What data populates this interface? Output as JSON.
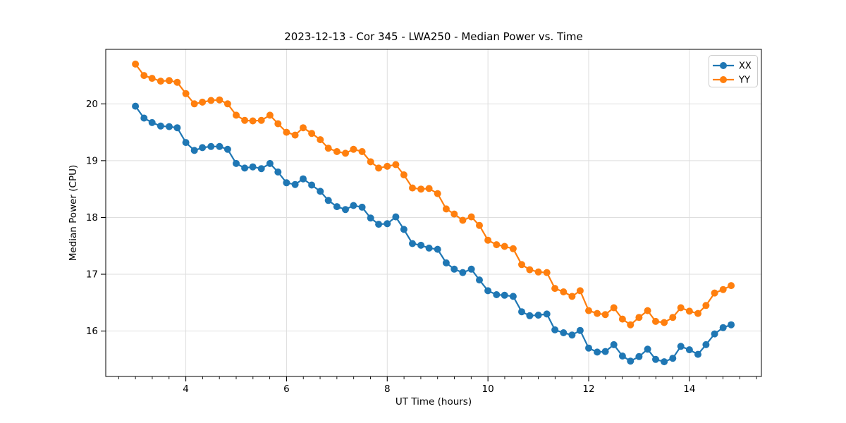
{
  "figure": {
    "title": "2023-12-13 - Cor 345 - LWA250 - Median Power vs. Time",
    "xlabel": "UT Time (hours)",
    "ylabel": "Median Power (CPU)"
  },
  "chart_data": {
    "type": "line",
    "title": "2023-12-13 - Cor 345 - LWA250 - Median Power vs. Time",
    "xlabel": "UT Time (hours)",
    "ylabel": "Median Power (CPU)",
    "x": [
      3.0,
      3.17,
      3.33,
      3.5,
      3.67,
      3.83,
      4.0,
      4.17,
      4.33,
      4.5,
      4.67,
      4.83,
      5.0,
      5.17,
      5.33,
      5.5,
      5.67,
      5.83,
      6.0,
      6.17,
      6.33,
      6.5,
      6.67,
      6.83,
      7.0,
      7.17,
      7.33,
      7.5,
      7.67,
      7.83,
      8.0,
      8.17,
      8.33,
      8.5,
      8.67,
      8.83,
      9.0,
      9.17,
      9.33,
      9.5,
      9.67,
      9.83,
      10.0,
      10.17,
      10.33,
      10.5,
      10.67,
      10.83,
      11.0,
      11.17,
      11.33,
      11.5,
      11.67,
      11.83,
      12.0,
      12.17,
      12.33,
      12.5,
      12.67,
      12.83,
      13.0,
      13.17,
      13.33,
      13.5,
      13.67,
      13.83,
      14.0,
      14.17,
      14.33,
      14.5,
      14.67,
      14.83
    ],
    "series": [
      {
        "name": "XX",
        "color": "#1f77b4",
        "marker": "circle",
        "values": [
          19.96,
          19.75,
          19.67,
          19.61,
          19.6,
          19.58,
          19.32,
          19.18,
          19.23,
          19.25,
          19.25,
          19.2,
          18.95,
          18.87,
          18.89,
          18.86,
          18.95,
          18.8,
          18.61,
          18.58,
          18.68,
          18.57,
          18.46,
          18.3,
          18.19,
          18.14,
          18.21,
          18.18,
          17.99,
          17.88,
          17.89,
          18.01,
          17.79,
          17.54,
          17.51,
          17.46,
          17.44,
          17.2,
          17.09,
          17.03,
          17.09,
          16.9,
          16.71,
          16.64,
          16.63,
          16.61,
          16.34,
          16.27,
          16.28,
          16.3,
          16.02,
          15.97,
          15.93,
          16.01,
          15.7,
          15.63,
          15.64,
          15.76,
          15.56,
          15.47,
          15.55,
          15.68,
          15.5,
          15.46,
          15.52,
          15.73,
          15.67,
          15.59,
          15.76,
          15.95,
          16.06,
          16.11
        ]
      },
      {
        "name": "YY",
        "color": "#ff7f0e",
        "marker": "circle",
        "values": [
          20.7,
          20.5,
          20.45,
          20.4,
          20.41,
          20.38,
          20.18,
          20.0,
          20.03,
          20.06,
          20.07,
          20.0,
          19.8,
          19.71,
          19.7,
          19.71,
          19.8,
          19.65,
          19.5,
          19.45,
          19.58,
          19.48,
          19.37,
          19.22,
          19.16,
          19.13,
          19.2,
          19.16,
          18.98,
          18.87,
          18.9,
          18.93,
          18.75,
          18.52,
          18.5,
          18.51,
          18.42,
          18.15,
          18.06,
          17.95,
          18.01,
          17.86,
          17.6,
          17.52,
          17.49,
          17.45,
          17.17,
          17.08,
          17.04,
          17.03,
          16.75,
          16.69,
          16.61,
          16.71,
          16.36,
          16.31,
          16.29,
          16.41,
          16.21,
          16.11,
          16.24,
          16.36,
          16.17,
          16.15,
          16.24,
          16.41,
          16.35,
          16.31,
          16.45,
          16.67,
          16.73,
          16.8
        ]
      }
    ],
    "x_ticks": [
      4,
      6,
      8,
      10,
      12,
      14
    ],
    "x_minor_step": 0.3333,
    "y_ticks": [
      16,
      17,
      18,
      19,
      20
    ],
    "xlim": [
      2.41,
      15.43
    ],
    "ylim": [
      15.2,
      20.96
    ],
    "grid": true,
    "legend": {
      "position": "upper right",
      "entries": [
        "XX",
        "YY"
      ]
    }
  }
}
